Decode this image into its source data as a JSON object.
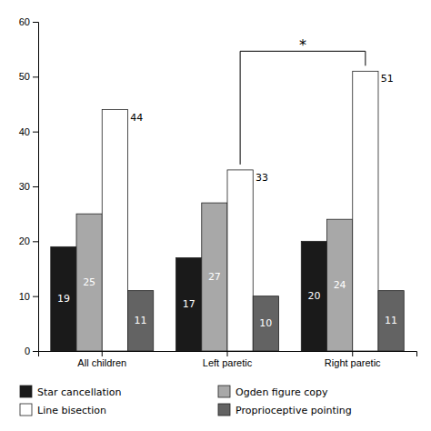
{
  "chart_data": {
    "type": "bar",
    "categories": [
      "All children",
      "Left paretic",
      "Right paretic"
    ],
    "series": [
      {
        "name": "Star cancellation",
        "color": "#1a1a1a",
        "values": [
          19,
          17,
          20
        ]
      },
      {
        "name": "Ogden figure copy",
        "color": "#a8a8a8",
        "values": [
          25,
          27,
          24
        ]
      },
      {
        "name": "Line bisection",
        "color": "#ffffff",
        "values": [
          44,
          33,
          51
        ]
      },
      {
        "name": "Proprioceptive pointing",
        "color": "#636363",
        "values": [
          11,
          10,
          11
        ]
      }
    ],
    "ylim": [
      0,
      60
    ],
    "yticks": [
      0,
      10,
      20,
      30,
      40,
      50,
      60
    ],
    "grid": false,
    "legend": "bottom",
    "data_labels": true,
    "annotations": [
      {
        "text": "*",
        "categories": [
          "Left paretic",
          "Right paretic"
        ],
        "series": "Line bisection"
      }
    ]
  }
}
